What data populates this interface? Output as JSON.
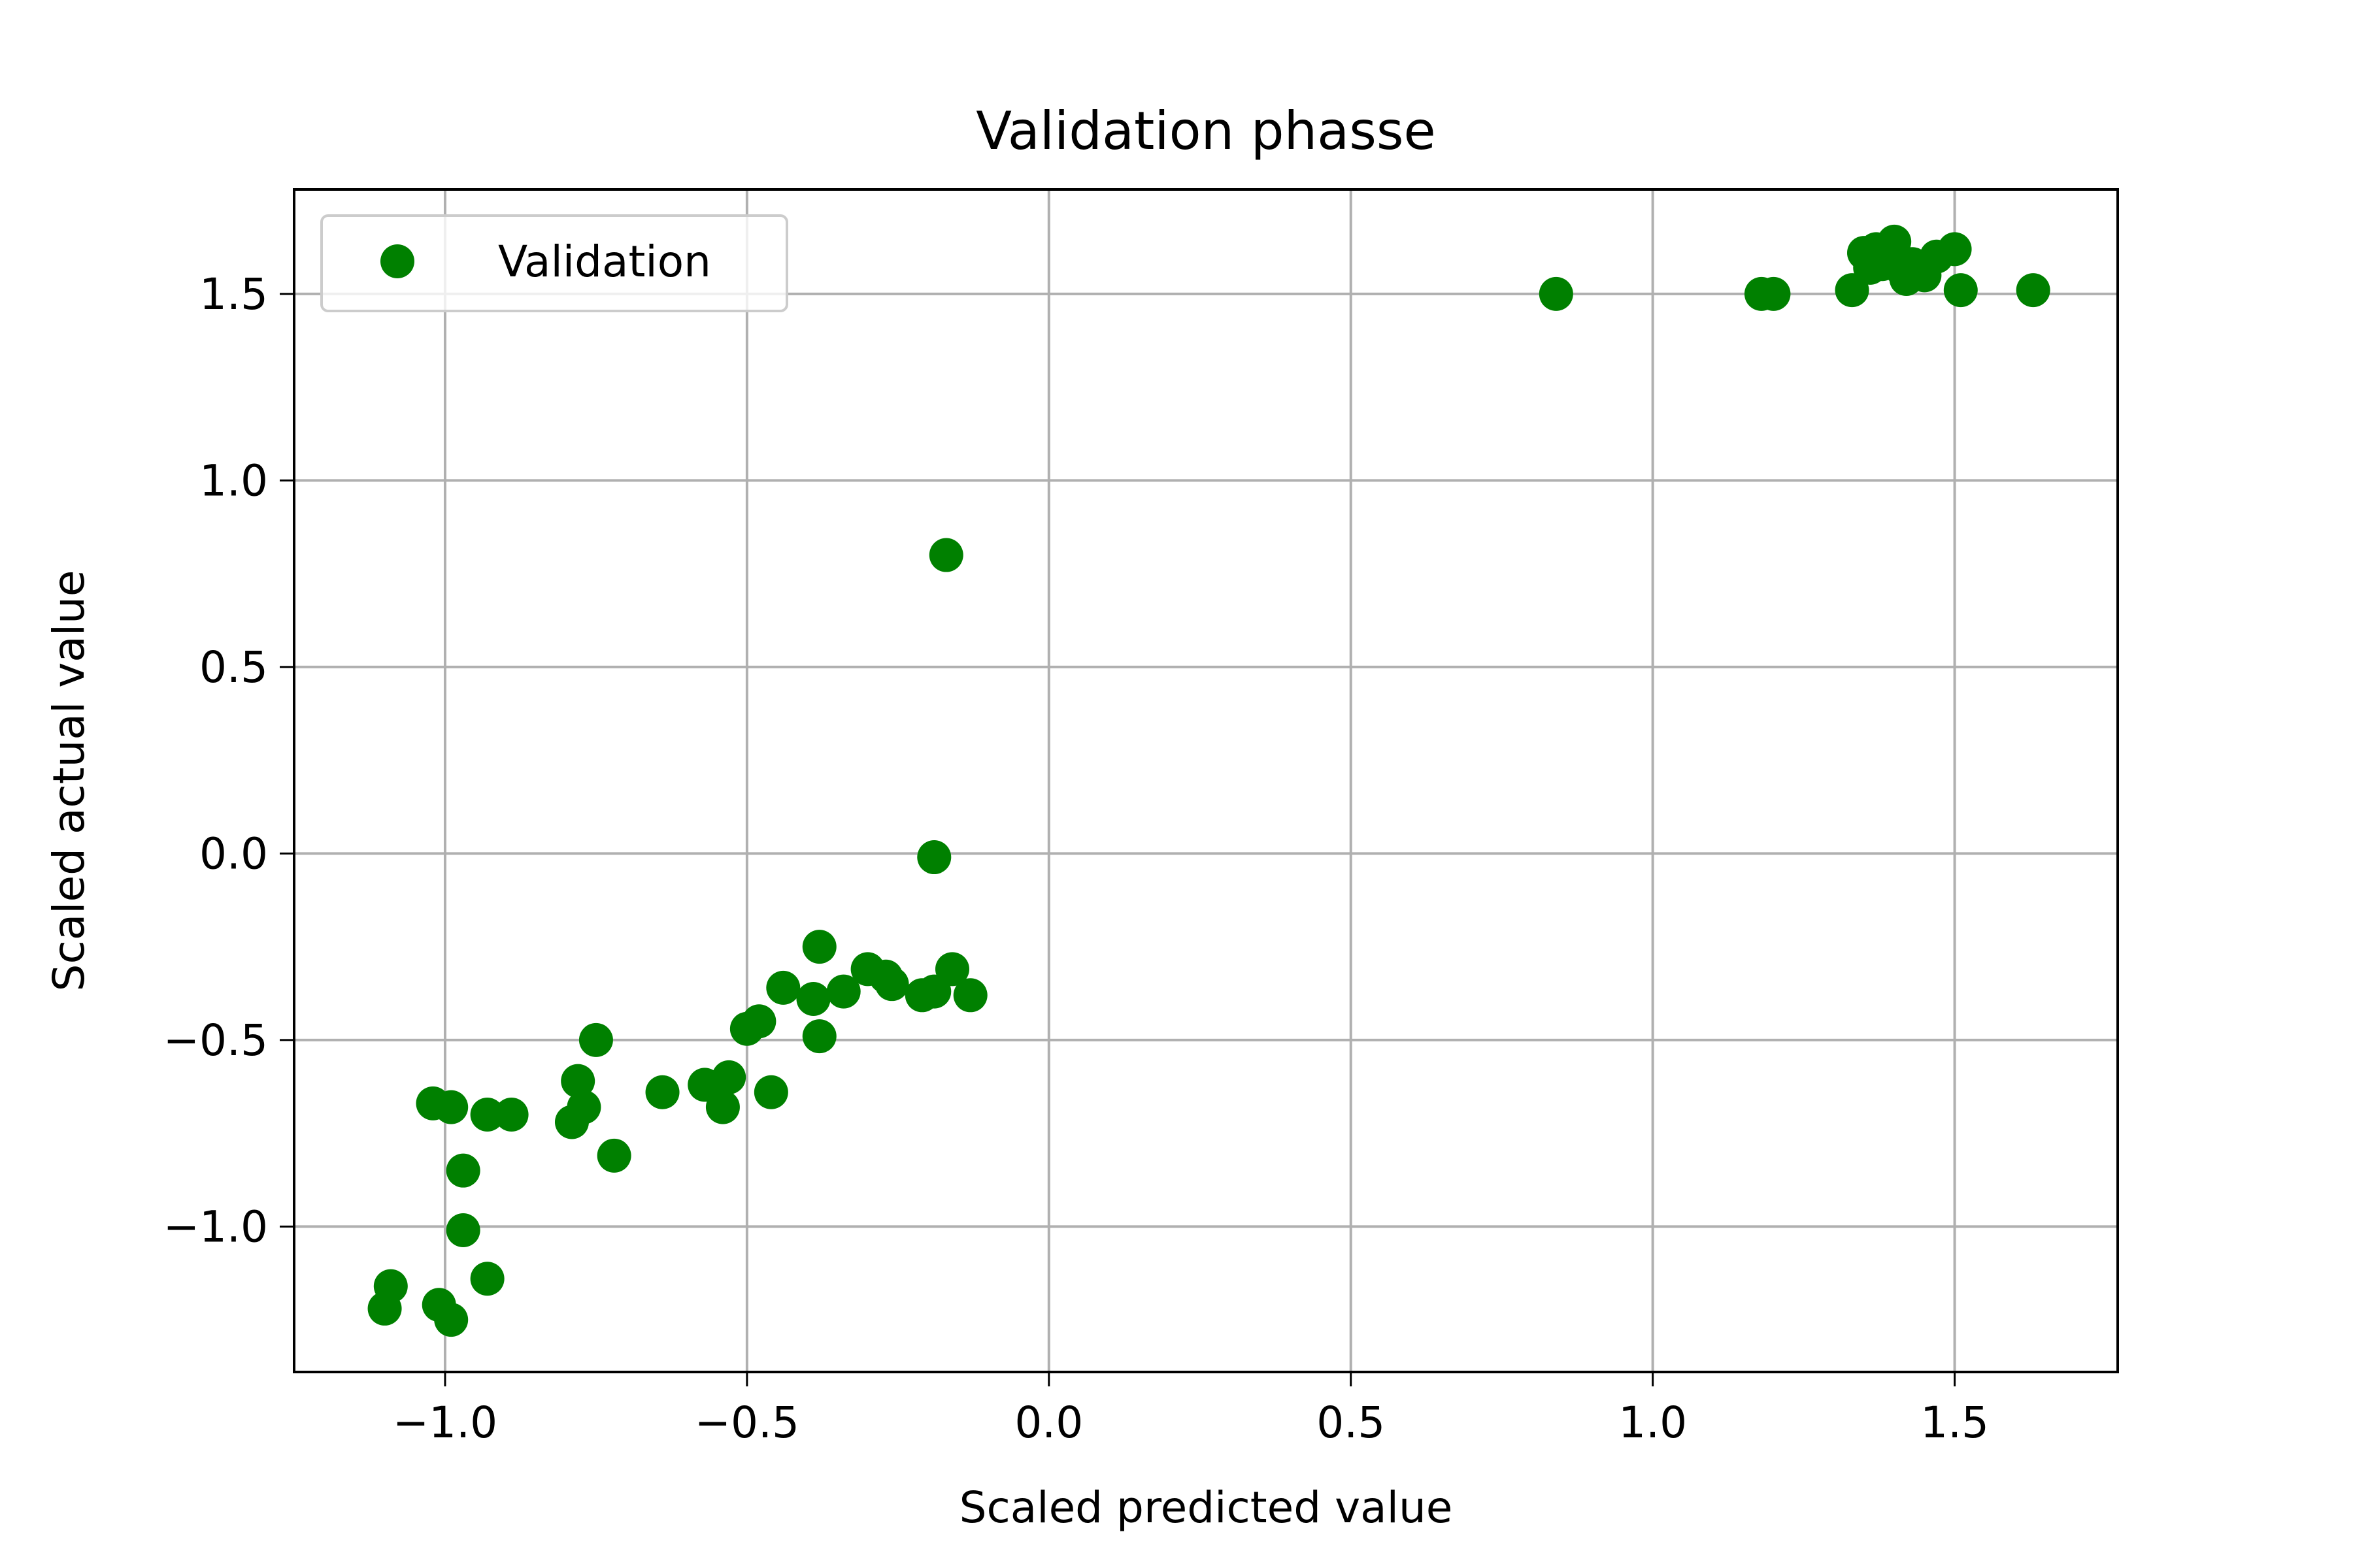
{
  "chart_data": {
    "type": "scatter",
    "title": "Validation phasse",
    "xlabel": "Scaled predicted value",
    "ylabel": "Scaled actual value",
    "xlim": [
      -1.25,
      1.77
    ],
    "ylim": [
      -1.39,
      1.78
    ],
    "x_ticks": [
      -1.0,
      -0.5,
      0.0,
      0.5,
      1.0,
      1.5
    ],
    "x_tick_labels": [
      "−1.0",
      "−0.5",
      "0.0",
      "0.5",
      "1.0",
      "1.5"
    ],
    "y_ticks": [
      -1.0,
      -0.5,
      0.0,
      0.5,
      1.0,
      1.5
    ],
    "y_tick_labels": [
      "−1.0",
      "−0.5",
      "0.0",
      "0.5",
      "1.0",
      "1.5"
    ],
    "grid": true,
    "legend": "upper-left",
    "series": [
      {
        "name": "Validation",
        "color": "#008000",
        "marker": "circle",
        "points": [
          [
            -1.1,
            -1.22
          ],
          [
            -1.09,
            -1.16
          ],
          [
            -1.01,
            -1.21
          ],
          [
            -0.99,
            -1.25
          ],
          [
            -0.93,
            -1.14
          ],
          [
            -0.97,
            -1.01
          ],
          [
            -0.97,
            -0.85
          ],
          [
            -1.02,
            -0.67
          ],
          [
            -0.99,
            -0.68
          ],
          [
            -0.93,
            -0.7
          ],
          [
            -0.89,
            -0.7
          ],
          [
            -0.79,
            -0.72
          ],
          [
            -0.77,
            -0.68
          ],
          [
            -0.78,
            -0.61
          ],
          [
            -0.75,
            -0.5
          ],
          [
            -0.72,
            -0.81
          ],
          [
            -0.64,
            -0.64
          ],
          [
            -0.57,
            -0.62
          ],
          [
            -0.54,
            -0.68
          ],
          [
            -0.53,
            -0.6
          ],
          [
            -0.46,
            -0.64
          ],
          [
            -0.5,
            -0.47
          ],
          [
            -0.48,
            -0.45
          ],
          [
            -0.44,
            -0.36
          ],
          [
            -0.39,
            -0.39
          ],
          [
            -0.38,
            -0.49
          ],
          [
            -0.38,
            -0.25
          ],
          [
            -0.34,
            -0.37
          ],
          [
            -0.3,
            -0.31
          ],
          [
            -0.27,
            -0.33
          ],
          [
            -0.26,
            -0.35
          ],
          [
            -0.21,
            -0.38
          ],
          [
            -0.19,
            -0.37
          ],
          [
            -0.16,
            -0.31
          ],
          [
            -0.13,
            -0.38
          ],
          [
            -0.19,
            -0.01
          ],
          [
            -0.17,
            0.8
          ],
          [
            0.84,
            1.5
          ],
          [
            1.18,
            1.5
          ],
          [
            1.2,
            1.5
          ],
          [
            1.33,
            1.51
          ],
          [
            1.35,
            1.61
          ],
          [
            1.36,
            1.57
          ],
          [
            1.37,
            1.62
          ],
          [
            1.38,
            1.58
          ],
          [
            1.39,
            1.59
          ],
          [
            1.4,
            1.64
          ],
          [
            1.41,
            1.57
          ],
          [
            1.42,
            1.54
          ],
          [
            1.43,
            1.58
          ],
          [
            1.45,
            1.55
          ],
          [
            1.47,
            1.6
          ],
          [
            1.5,
            1.62
          ],
          [
            1.51,
            1.51
          ],
          [
            1.63,
            1.51
          ]
        ]
      }
    ]
  }
}
